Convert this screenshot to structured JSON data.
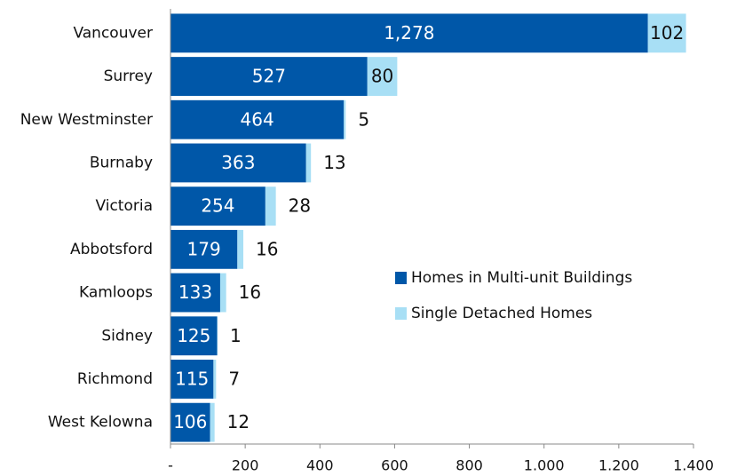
{
  "chart_data": {
    "type": "stacked-barh",
    "categories": [
      "Vancouver",
      "Surrey",
      "New Westminster",
      "Burnaby",
      "Victoria",
      "Abbotsford",
      "Kamloops",
      "Sidney",
      "Richmond",
      "West Kelowna"
    ],
    "series": [
      {
        "name": "Homes in Multi-unit Buildings",
        "color": "#0057a8",
        "values": [
          1278,
          527,
          464,
          363,
          254,
          179,
          133,
          125,
          115,
          106
        ],
        "value_labels": [
          "1,278",
          "527",
          "464",
          "363",
          "254",
          "179",
          "133",
          "125",
          "115",
          "106"
        ]
      },
      {
        "name": "Single Detached Homes",
        "color": "#a8dff5",
        "values": [
          102,
          80,
          5,
          13,
          28,
          16,
          16,
          1,
          7,
          12
        ]
      }
    ],
    "xlim": [
      0,
      1400
    ],
    "xticks": [
      {
        "value": 0,
        "label": "-"
      },
      200,
      400,
      600,
      800,
      {
        "value": 1000,
        "label": "1.000"
      },
      {
        "value": 1200,
        "label": "1.200"
      },
      {
        "value": 1400,
        "label": "1.400"
      }
    ],
    "legend": "right"
  }
}
